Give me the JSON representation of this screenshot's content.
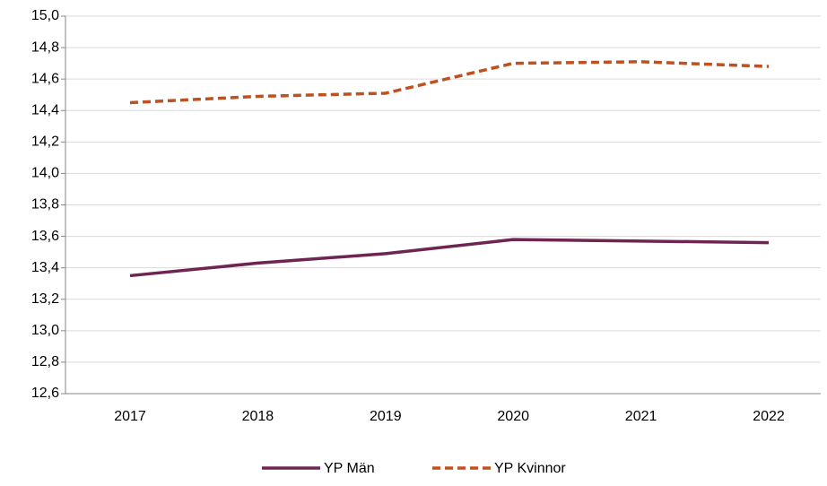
{
  "chart_data": {
    "type": "line",
    "categories": [
      "2017",
      "2018",
      "2019",
      "2020",
      "2021",
      "2022"
    ],
    "series": [
      {
        "name": "YP Män",
        "color": "#6e2552",
        "dash": false,
        "values": [
          13.35,
          13.43,
          13.49,
          13.58,
          13.57,
          13.56
        ]
      },
      {
        "name": "YP Kvinnor",
        "color": "#c0501e",
        "dash": true,
        "values": [
          14.45,
          14.49,
          14.51,
          14.7,
          14.71,
          14.68
        ]
      }
    ],
    "ylim": [
      12.6,
      15.0
    ],
    "yticks": [
      {
        "value": 12.6,
        "label": "12,6"
      },
      {
        "value": 12.8,
        "label": "12,8"
      },
      {
        "value": 13.0,
        "label": "13,0"
      },
      {
        "value": 13.2,
        "label": "13,2"
      },
      {
        "value": 13.4,
        "label": "13,4"
      },
      {
        "value": 13.6,
        "label": "13,6"
      },
      {
        "value": 13.8,
        "label": "13,8"
      },
      {
        "value": 14.0,
        "label": "14,0"
      },
      {
        "value": 14.2,
        "label": "14,2"
      },
      {
        "value": 14.4,
        "label": "14,4"
      },
      {
        "value": 14.6,
        "label": "14,6"
      },
      {
        "value": 14.8,
        "label": "14,8"
      },
      {
        "value": 15.0,
        "label": "15,0"
      }
    ],
    "grid": true,
    "legend": "bottom"
  }
}
